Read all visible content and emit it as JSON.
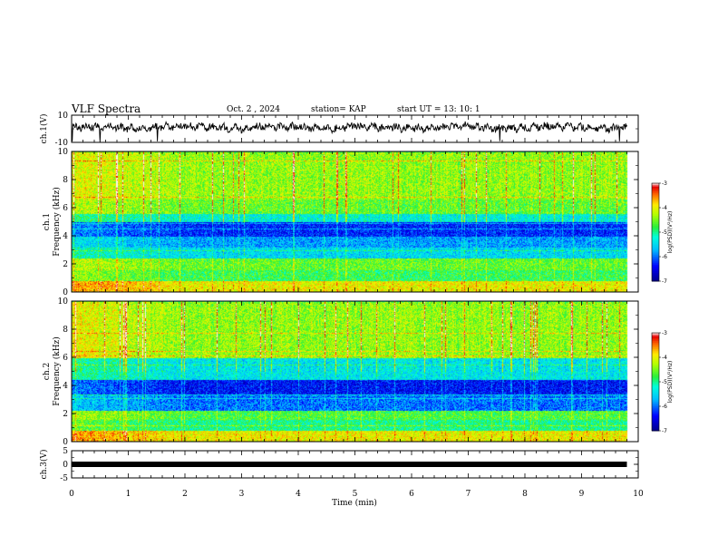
{
  "header": {
    "title": "VLF Spectra",
    "date": "Oct. 2  , 2024",
    "station": "station= KAP",
    "start": "start  UT  =   13: 10: 1"
  },
  "colors": {
    "spectrogram_scale": [
      "#00008b",
      "#0000ff",
      "#00bfff",
      "#00ffff",
      "#00ff7f",
      "#7fff00",
      "#ffff00",
      "#ff7f00",
      "#ff0000",
      "#ffffff"
    ],
    "trace": "#000000"
  },
  "chart_data": [
    {
      "id": "ch1-waveform",
      "type": "line",
      "ylabel": "ch.1(V)",
      "xlim": [
        0,
        10
      ],
      "ylim": [
        -10,
        10
      ],
      "yticks": [
        "10",
        "-10"
      ],
      "series": [
        {
          "x": [
            0,
            0.5,
            1,
            1.5,
            2,
            2.5,
            3,
            3.5,
            4,
            4.5,
            5,
            5.5,
            6,
            6.5,
            7,
            7.5,
            8,
            8.5,
            9,
            9.5,
            9.8
          ],
          "values": [
            1,
            2,
            0,
            1,
            2,
            1,
            0,
            2,
            1,
            0,
            2,
            1,
            0,
            1,
            2,
            0,
            1,
            2,
            1,
            0,
            1
          ]
        }
      ]
    },
    {
      "id": "ch1-spectrogram",
      "type": "heatmap",
      "ylabel": "ch.1\nFrequency (kHz)",
      "xlim": [
        0,
        10
      ],
      "ylim": [
        0,
        10
      ],
      "yticks": [
        "0",
        "2",
        "4",
        "6",
        "8",
        "10"
      ],
      "data_extent_min": 9.8,
      "band_levels": [
        {
          "freq": [
            0,
            0.8
          ],
          "level": -4.0
        },
        {
          "freq": [
            0.8,
            1.6
          ],
          "level": -4.8
        },
        {
          "freq": [
            1.6,
            2.4
          ],
          "level": -4.6
        },
        {
          "freq": [
            2.4,
            3.2
          ],
          "level": -5.5
        },
        {
          "freq": [
            3.2,
            4.0
          ],
          "level": -5.8
        },
        {
          "freq": [
            4.0,
            5.0
          ],
          "level": -6.3
        },
        {
          "freq": [
            5.0,
            5.6
          ],
          "level": -5.3
        },
        {
          "freq": [
            5.6,
            6.6
          ],
          "level": -4.6
        },
        {
          "freq": [
            6.6,
            10.0
          ],
          "level": -4.4
        }
      ],
      "colorbar": {
        "label": "log(PSD)(V²/Hz)",
        "range": [
          -7,
          -3
        ],
        "ticks": [
          "-3",
          "-4",
          "-5",
          "-6",
          "-7"
        ]
      }
    },
    {
      "id": "ch2-spectrogram",
      "type": "heatmap",
      "ylabel": "ch.2\nFrequency (kHz)",
      "xlim": [
        0,
        10
      ],
      "ylim": [
        0,
        10
      ],
      "yticks": [
        "0",
        "2",
        "4",
        "6",
        "8",
        "10"
      ],
      "data_extent_min": 9.8,
      "band_levels": [
        {
          "freq": [
            0,
            0.8
          ],
          "level": -4.0
        },
        {
          "freq": [
            0.8,
            1.6
          ],
          "level": -5.0
        },
        {
          "freq": [
            1.6,
            2.2
          ],
          "level": -4.7
        },
        {
          "freq": [
            2.2,
            3.4
          ],
          "level": -6.0
        },
        {
          "freq": [
            3.4,
            4.4
          ],
          "level": -6.4
        },
        {
          "freq": [
            4.4,
            6.0
          ],
          "level": -5.4
        },
        {
          "freq": [
            6.0,
            10.0
          ],
          "level": -4.4
        }
      ],
      "colorbar": {
        "label": "log(PSD)(V²/Hz)",
        "range": [
          -7,
          -3
        ],
        "ticks": [
          "-3",
          "-4",
          "-5",
          "-6",
          "-7"
        ]
      }
    },
    {
      "id": "ch3-waveform",
      "type": "line",
      "ylabel": "ch.3(V)",
      "xlabel": "Time (min)",
      "xlim": [
        0,
        10
      ],
      "ylim": [
        -5,
        5
      ],
      "yticks": [
        "5",
        "0",
        "-5"
      ],
      "xticks": [
        "0",
        "1",
        "2",
        "3",
        "4",
        "5",
        "6",
        "7",
        "8",
        "9",
        "10"
      ],
      "series": [
        {
          "x": [
            0,
            9.8
          ],
          "values": [
            0,
            0
          ]
        }
      ]
    }
  ]
}
